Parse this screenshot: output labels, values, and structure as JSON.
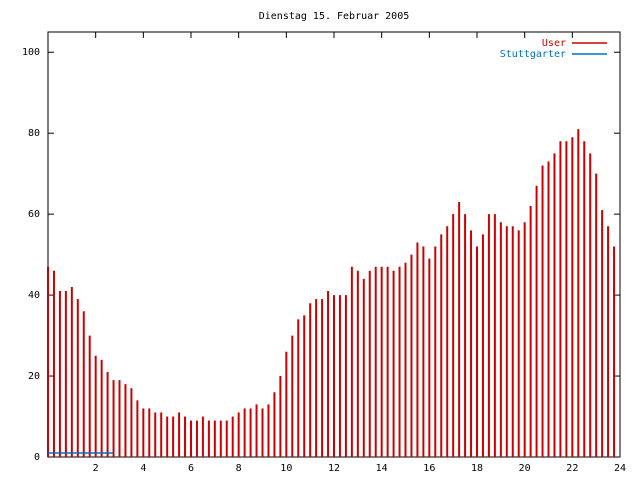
{
  "chart_data": {
    "type": "impulse",
    "title": "Dienstag 15. Februar 2005",
    "x": [
      0,
      0.25,
      0.5,
      0.75,
      1,
      1.25,
      1.5,
      1.75,
      2,
      2.25,
      2.5,
      2.75,
      3,
      3.25,
      3.5,
      3.75,
      4,
      4.25,
      4.5,
      4.75,
      5,
      5.25,
      5.5,
      5.75,
      6,
      6.25,
      6.5,
      6.75,
      7,
      7.25,
      7.5,
      7.75,
      8,
      8.25,
      8.5,
      8.75,
      9,
      9.25,
      9.5,
      9.75,
      10,
      10.25,
      10.5,
      10.75,
      11,
      11.25,
      11.5,
      11.75,
      12,
      12.25,
      12.5,
      12.75,
      13,
      13.25,
      13.5,
      13.75,
      14,
      14.25,
      14.5,
      14.75,
      15,
      15.25,
      15.5,
      15.75,
      16,
      16.25,
      16.5,
      16.75,
      17,
      17.25,
      17.5,
      17.75,
      18,
      18.25,
      18.5,
      18.75,
      19,
      19.25,
      19.5,
      19.75,
      20,
      20.25,
      20.5,
      20.75,
      21,
      21.25,
      21.5,
      21.75,
      22,
      22.25,
      22.5,
      22.75,
      23,
      23.25,
      23.5,
      23.75
    ],
    "series": [
      {
        "name": "User",
        "color": "#cc0000",
        "values": [
          47,
          46,
          41,
          41,
          42,
          39,
          36,
          30,
          25,
          24,
          21,
          19,
          19,
          18,
          17,
          14,
          12,
          12,
          11,
          11,
          10,
          10,
          11,
          10,
          9,
          9,
          10,
          9,
          9,
          9,
          9,
          10,
          11,
          12,
          12,
          13,
          12,
          13,
          16,
          20,
          26,
          30,
          34,
          35,
          38,
          39,
          39,
          41,
          40,
          40,
          40,
          47,
          46,
          44,
          46,
          47,
          47,
          47,
          46,
          47,
          48,
          50,
          53,
          52,
          49,
          52,
          55,
          57,
          60,
          63,
          60,
          56,
          52,
          55,
          60,
          60,
          58,
          57,
          57,
          56,
          58,
          62,
          67,
          72,
          73,
          75,
          78,
          78,
          79,
          81,
          78,
          75,
          70,
          61,
          57,
          52
        ]
      },
      {
        "name": "Stuttgarter",
        "color": "#0070c0",
        "values": [
          1,
          1,
          1,
          1,
          1,
          1,
          1,
          1,
          1,
          1,
          1,
          1,
          null,
          null,
          null,
          null,
          null,
          null,
          null,
          null,
          null,
          null,
          null,
          null,
          null,
          null,
          null,
          null,
          null,
          null,
          null,
          null,
          null,
          null,
          null,
          null,
          null,
          null,
          null,
          null,
          null,
          null,
          null,
          null,
          null,
          null,
          null,
          null,
          null,
          null,
          null,
          null,
          null,
          null,
          null,
          null,
          null,
          null,
          null,
          null,
          null,
          null,
          null,
          null,
          null,
          null,
          null,
          null,
          null,
          null,
          null,
          null,
          null,
          null,
          null,
          null,
          null,
          null,
          null,
          null,
          null,
          null,
          null,
          null,
          null,
          null,
          null,
          null,
          null,
          null,
          null,
          null,
          null,
          null,
          null,
          null
        ]
      }
    ],
    "xlim": [
      0,
      24
    ],
    "xticks": [
      2,
      4,
      6,
      8,
      10,
      12,
      14,
      16,
      18,
      20,
      22,
      24
    ],
    "ylim": [
      0,
      105
    ],
    "yticks": [
      0,
      20,
      40,
      60,
      80,
      100
    ],
    "grid": false,
    "legend": "top-right"
  }
}
